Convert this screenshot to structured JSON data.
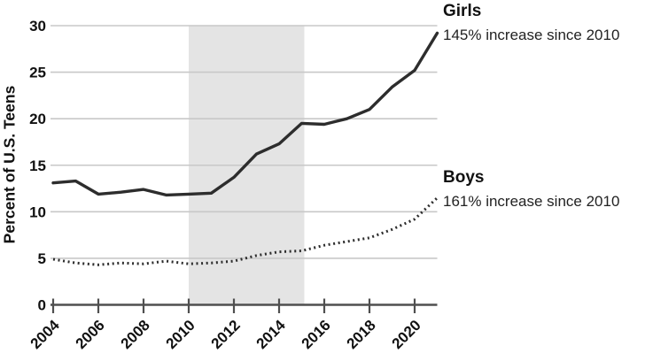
{
  "chart_data": {
    "type": "line",
    "title": "",
    "ylabel": "Percent of U.S. Teens",
    "xlabel": "",
    "xlim": [
      2004,
      2021
    ],
    "ylim": [
      0,
      30
    ],
    "xticks": [
      2004,
      2006,
      2008,
      2010,
      2012,
      2014,
      2016,
      2018,
      2020
    ],
    "yticks": [
      0,
      5,
      10,
      15,
      20,
      25,
      30
    ],
    "grid": true,
    "legend_position": "inline-right-annotations",
    "x": [
      2004,
      2005,
      2006,
      2007,
      2008,
      2009,
      2010,
      2011,
      2012,
      2013,
      2014,
      2015,
      2016,
      2017,
      2018,
      2019,
      2020,
      2021
    ],
    "series": [
      {
        "name": "Girls",
        "line_style": "solid",
        "values": [
          13.1,
          13.3,
          11.9,
          12.1,
          12.4,
          11.8,
          11.9,
          12.0,
          13.7,
          16.2,
          17.3,
          19.5,
          19.4,
          20.0,
          21.0,
          23.4,
          25.2,
          29.2
        ]
      },
      {
        "name": "Boys",
        "line_style": "dotted",
        "values": [
          4.9,
          4.5,
          4.3,
          4.5,
          4.4,
          4.7,
          4.4,
          4.5,
          4.7,
          5.3,
          5.7,
          5.8,
          6.4,
          6.8,
          7.2,
          8.1,
          9.2,
          11.5
        ]
      }
    ],
    "shaded_region": {
      "x_start": 2010,
      "x_end": 2015
    },
    "annotations": [
      {
        "label": "Girls",
        "note": "145% increase since 2010"
      },
      {
        "label": "Boys",
        "note": "161% increase since 2010"
      }
    ],
    "colors": {
      "line": "#2d2d2d",
      "grid": "#c8c8c8",
      "band": "#e4e4e4",
      "axis": "#4f4f4f",
      "text": "#111111"
    }
  }
}
